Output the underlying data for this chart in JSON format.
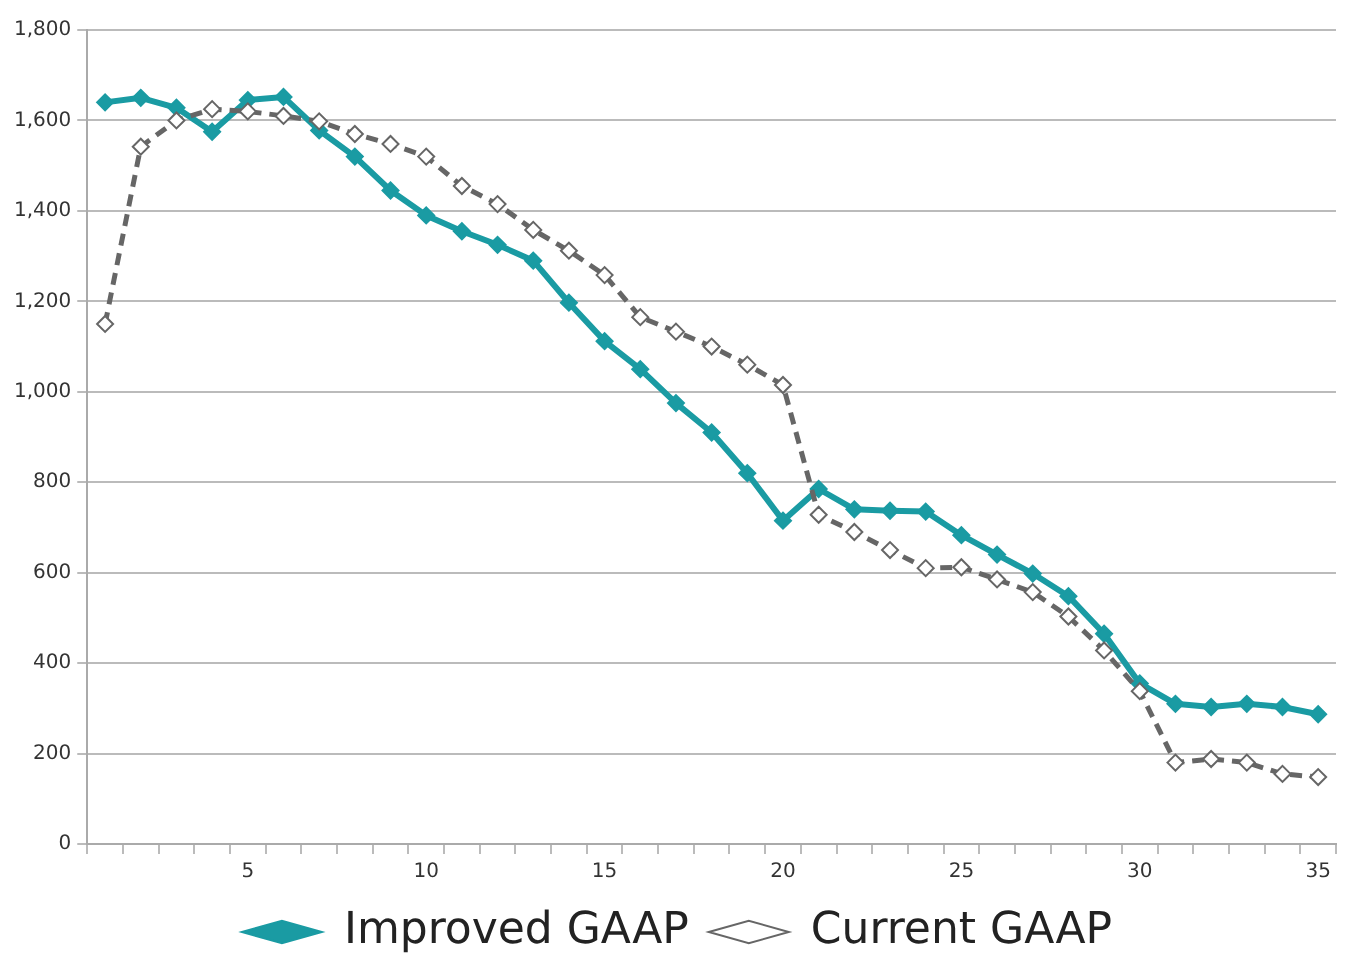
{
  "chart_data": {
    "type": "line",
    "categories": [
      null,
      null,
      null,
      null,
      "5",
      null,
      null,
      null,
      null,
      "10",
      null,
      null,
      null,
      null,
      "15",
      null,
      null,
      null,
      null,
      "20",
      null,
      null,
      null,
      null,
      "25",
      null,
      null,
      null,
      null,
      "30",
      null,
      null,
      null,
      null,
      "35"
    ],
    "series": [
      {
        "name": "Improved GAAP",
        "color": "#1a9ba3",
        "marker": "diamond",
        "line_style": "solid",
        "values": [
          1640,
          1650,
          1628,
          1575,
          1645,
          1652,
          1578,
          1520,
          1445,
          1390,
          1355,
          1325,
          1290,
          1197,
          1112,
          1050,
          975,
          910,
          820,
          715,
          785,
          740,
          737,
          735,
          683,
          640,
          598,
          548,
          465,
          355,
          310,
          303,
          310,
          303,
          287
        ]
      },
      {
        "name": "Current GAAP",
        "color": "#666666",
        "marker": "diamond",
        "line_style": "dashed",
        "values": [
          1150,
          1542,
          1600,
          1625,
          1620,
          1610,
          1598,
          1570,
          1548,
          1520,
          1455,
          1415,
          1358,
          1312,
          1258,
          1165,
          1133,
          1100,
          1060,
          1015,
          728,
          690,
          650,
          610,
          612,
          585,
          557,
          503,
          428,
          338,
          180,
          188,
          180,
          155,
          148
        ]
      }
    ],
    "ylim": [
      0,
      1800
    ],
    "yticks": [
      0,
      200,
      400,
      600,
      800,
      {
        "value": 1000,
        "label": "1,000"
      },
      {
        "value": 1200,
        "label": "1,200"
      },
      {
        "value": 1400,
        "label": "1,400"
      },
      {
        "value": 1600,
        "label": "1,600"
      },
      {
        "value": 1800,
        "label": "1,800"
      }
    ],
    "grid": "y",
    "legend": "bottom"
  }
}
